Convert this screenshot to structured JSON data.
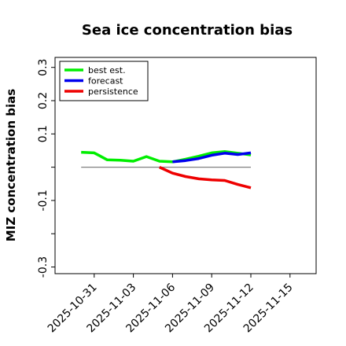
{
  "chart_data": {
    "type": "line",
    "title": "Sea ice concentration bias",
    "xlabel": "",
    "ylabel": "MIZ concentration bias",
    "xlim": [
      "2025-10-28",
      "2025-11-17"
    ],
    "ylim": [
      -0.32,
      0.33
    ],
    "x_tick_labels": [
      {
        "date": "2025-10-31",
        "label": "2025-10-31",
        "color": "#000000"
      },
      {
        "date": "2025-11-03",
        "label": "2025-11-03",
        "color": "#000000"
      },
      {
        "date": "2025-11-06",
        "label": "2025-11-06",
        "color": "#228B22"
      },
      {
        "date": "2025-11-09",
        "label": "2025-11-09",
        "color": "#000000"
      },
      {
        "date": "2025-11-12",
        "label": "2025-11-12",
        "color": "#000000"
      },
      {
        "date": "2025-11-15",
        "label": "2025-11-15",
        "color": "#000000"
      }
    ],
    "y_ticks": [
      -0.3,
      -0.2,
      -0.1,
      0.0,
      0.1,
      0.2,
      0.3
    ],
    "y_tick_labels": [
      {
        "value": -0.3,
        "label": "-0.3"
      },
      {
        "value": -0.1,
        "label": "-0.1"
      },
      {
        "value": 0.1,
        "label": "0.1"
      },
      {
        "value": 0.2,
        "label": "0.2"
      },
      {
        "value": 0.3,
        "label": "0.3"
      }
    ],
    "zero_line": {
      "from": "2025-10-30",
      "to": "2025-11-12",
      "value": 0.0,
      "color": "#808080"
    },
    "legend": "top-left",
    "grid": false,
    "series": [
      {
        "name": "best est.",
        "color": "#00ee00",
        "x": [
          "2025-10-30",
          "2025-10-31",
          "2025-11-01",
          "2025-11-02",
          "2025-11-03",
          "2025-11-04",
          "2025-11-05",
          "2025-11-06",
          "2025-11-07",
          "2025-11-08",
          "2025-11-09",
          "2025-11-10",
          "2025-11-11",
          "2025-11-12"
        ],
        "y": [
          0.045,
          0.043,
          0.022,
          0.021,
          0.018,
          0.032,
          0.018,
          0.016,
          0.024,
          0.033,
          0.043,
          0.047,
          0.042,
          0.037
        ]
      },
      {
        "name": "forecast",
        "color": "#0000ee",
        "x": [
          "2025-11-06",
          "2025-11-07",
          "2025-11-08",
          "2025-11-09",
          "2025-11-10",
          "2025-11-11",
          "2025-11-12"
        ],
        "y": [
          0.016,
          0.02,
          0.026,
          0.036,
          0.042,
          0.038,
          0.043
        ]
      },
      {
        "name": "persistence",
        "color": "#ee0000",
        "x": [
          "2025-11-05",
          "2025-11-06",
          "2025-11-07",
          "2025-11-08",
          "2025-11-09",
          "2025-11-10",
          "2025-11-11",
          "2025-11-12"
        ],
        "y": [
          0.0,
          -0.018,
          -0.028,
          -0.035,
          -0.038,
          -0.04,
          -0.052,
          -0.062
        ]
      }
    ]
  }
}
